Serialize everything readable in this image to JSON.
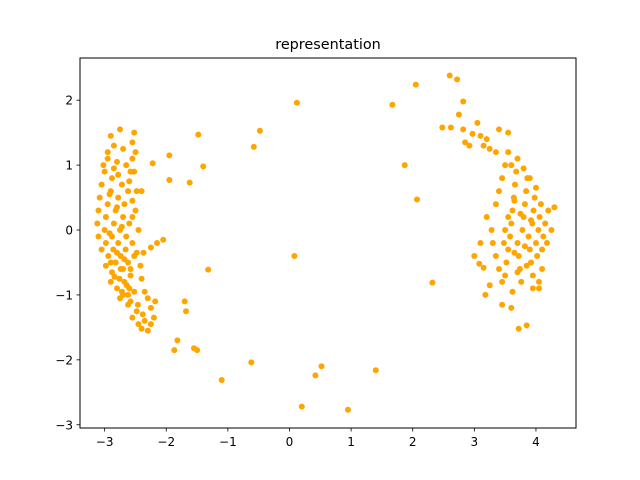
{
  "chart_data": {
    "type": "scatter",
    "title": "representation",
    "xlabel": "",
    "ylabel": "",
    "xlim": [
      -3.4,
      4.65
    ],
    "ylim": [
      -3.05,
      2.65
    ],
    "xticks": [
      -3,
      -2,
      -1,
      0,
      1,
      2,
      3,
      4
    ],
    "yticks": [
      -3,
      -2,
      -1,
      0,
      1,
      2
    ],
    "grid": false,
    "legend": "none",
    "marker_color": "#ffa500",
    "series": [
      {
        "points": [
          [
            -2.9,
            1.45
          ],
          [
            -2.75,
            1.55
          ],
          [
            -2.52,
            1.5
          ],
          [
            -2.85,
            1.3
          ],
          [
            -2.7,
            1.25
          ],
          [
            -2.55,
            1.35
          ],
          [
            -2.5,
            1.2
          ],
          [
            -2.95,
            1.1
          ],
          [
            -2.8,
            1.05
          ],
          [
            -2.65,
            1.0
          ],
          [
            -2.58,
            0.9
          ],
          [
            -3.0,
            0.9
          ],
          [
            -2.88,
            0.8
          ],
          [
            -2.72,
            0.7
          ],
          [
            -2.62,
            0.6
          ],
          [
            -3.05,
            0.7
          ],
          [
            -2.9,
            0.6
          ],
          [
            -2.78,
            0.5
          ],
          [
            -2.68,
            0.4
          ],
          [
            -3.08,
            0.5
          ],
          [
            -2.95,
            0.4
          ],
          [
            -2.82,
            0.3
          ],
          [
            -2.7,
            0.2
          ],
          [
            -2.6,
            0.1
          ],
          [
            -3.1,
            0.3
          ],
          [
            -2.98,
            0.2
          ],
          [
            -2.85,
            0.1
          ],
          [
            -2.75,
            0.0
          ],
          [
            -2.65,
            -0.1
          ],
          [
            -3.12,
            0.1
          ],
          [
            -3.0,
            0.0
          ],
          [
            -2.88,
            -0.1
          ],
          [
            -2.78,
            -0.2
          ],
          [
            -2.66,
            -0.3
          ],
          [
            -3.1,
            -0.1
          ],
          [
            -2.98,
            -0.2
          ],
          [
            -2.86,
            -0.3
          ],
          [
            -2.74,
            -0.4
          ],
          [
            -2.62,
            -0.5
          ],
          [
            -3.05,
            -0.3
          ],
          [
            -2.94,
            -0.4
          ],
          [
            -2.82,
            -0.5
          ],
          [
            -2.7,
            -0.6
          ],
          [
            -2.58,
            -0.7
          ],
          [
            -2.98,
            -0.55
          ],
          [
            -2.88,
            -0.65
          ],
          [
            -2.76,
            -0.75
          ],
          [
            -2.64,
            -0.85
          ],
          [
            -2.52,
            -0.95
          ],
          [
            -2.9,
            -0.8
          ],
          [
            -2.8,
            -0.9
          ],
          [
            -2.7,
            -1.0
          ],
          [
            -2.58,
            -1.1
          ],
          [
            -2.46,
            -1.15
          ],
          [
            -2.75,
            -1.05
          ],
          [
            -2.62,
            -1.15
          ],
          [
            -2.48,
            -1.25
          ],
          [
            -2.38,
            -1.3
          ],
          [
            -2.55,
            -1.35
          ],
          [
            -2.45,
            -1.45
          ],
          [
            -2.35,
            -1.4
          ],
          [
            -2.4,
            -1.52
          ],
          [
            -2.25,
            -1.45
          ],
          [
            -2.3,
            -1.55
          ],
          [
            -2.52,
            0.9
          ],
          [
            -2.48,
            0.6
          ],
          [
            -2.5,
            0.3
          ],
          [
            -2.45,
            0.0
          ],
          [
            -2.48,
            -0.35
          ],
          [
            -2.42,
            -0.55
          ],
          [
            -2.4,
            -0.75
          ],
          [
            -2.35,
            -0.95
          ],
          [
            -2.3,
            -1.05
          ],
          [
            -2.25,
            -1.2
          ],
          [
            -2.2,
            -1.35
          ],
          [
            -2.18,
            -1.1
          ],
          [
            -2.95,
            1.2
          ],
          [
            -3.02,
            1.0
          ],
          [
            -2.55,
            1.1
          ],
          [
            -2.6,
            0.75
          ],
          [
            -2.55,
            0.45
          ],
          [
            -2.55,
            0.2
          ],
          [
            -2.55,
            -0.2
          ],
          [
            -2.52,
            -0.4
          ],
          [
            -2.58,
            -0.6
          ],
          [
            -2.6,
            -0.9
          ],
          [
            -2.85,
            0.95
          ],
          [
            -2.78,
            0.85
          ],
          [
            -2.92,
            0.55
          ],
          [
            -2.8,
            0.35
          ],
          [
            -2.72,
            0.05
          ],
          [
            -2.92,
            -0.05
          ],
          [
            -2.8,
            -0.35
          ],
          [
            -2.68,
            -0.45
          ],
          [
            -2.9,
            -0.5
          ],
          [
            -2.74,
            -0.6
          ],
          [
            -2.84,
            -0.72
          ],
          [
            -2.68,
            -0.8
          ],
          [
            -2.72,
            -0.95
          ],
          [
            -2.62,
            -1.0
          ],
          [
            -2.4,
            0.6
          ],
          [
            -2.22,
            1.03
          ],
          [
            -2.37,
            -0.35
          ],
          [
            -2.25,
            -0.27
          ],
          [
            -2.15,
            -0.2
          ],
          [
            -2.05,
            -0.15
          ],
          [
            -1.95,
            1.15
          ],
          [
            -1.95,
            0.77
          ],
          [
            -1.82,
            -1.7
          ],
          [
            -1.87,
            -1.85
          ],
          [
            -1.7,
            -1.1
          ],
          [
            -1.68,
            -1.25
          ],
          [
            -1.5,
            -1.85
          ],
          [
            -1.55,
            -1.82
          ],
          [
            -1.62,
            0.73
          ],
          [
            -1.48,
            1.47
          ],
          [
            -1.4,
            0.98
          ],
          [
            -1.32,
            -0.61
          ],
          [
            -1.1,
            -2.31
          ],
          [
            -0.58,
            1.28
          ],
          [
            -0.48,
            1.53
          ],
          [
            -0.62,
            -2.04
          ],
          [
            0.08,
            -0.4
          ],
          [
            0.12,
            1.96
          ],
          [
            0.42,
            -2.24
          ],
          [
            0.52,
            -2.1
          ],
          [
            0.2,
            -2.72
          ],
          [
            0.95,
            -2.77
          ],
          [
            1.4,
            -2.16
          ],
          [
            1.67,
            1.93
          ],
          [
            1.87,
            1.0
          ],
          [
            2.05,
            2.24
          ],
          [
            2.07,
            0.47
          ],
          [
            2.32,
            -0.81
          ],
          [
            2.48,
            1.58
          ],
          [
            2.6,
            2.38
          ],
          [
            2.72,
            2.32
          ],
          [
            2.62,
            1.58
          ],
          [
            2.75,
            1.78
          ],
          [
            2.82,
            1.55
          ],
          [
            2.85,
            1.35
          ],
          [
            2.92,
            1.3
          ],
          [
            2.97,
            1.48
          ],
          [
            3.05,
            1.65
          ],
          [
            3.1,
            1.45
          ],
          [
            3.15,
            1.3
          ],
          [
            3.2,
            1.4
          ],
          [
            3.25,
            1.25
          ],
          [
            2.82,
            1.98
          ],
          [
            3.0,
            -0.4
          ],
          [
            3.08,
            -0.52
          ],
          [
            3.15,
            -0.58
          ],
          [
            3.25,
            -0.85
          ],
          [
            3.18,
            -1.0
          ],
          [
            3.1,
            -0.2
          ],
          [
            3.2,
            0.2
          ],
          [
            3.28,
            0.0
          ],
          [
            3.3,
            -0.2
          ],
          [
            3.35,
            -0.4
          ],
          [
            3.4,
            -0.6
          ],
          [
            3.45,
            -0.8
          ],
          [
            3.5,
            -0.7
          ],
          [
            3.52,
            -0.5
          ],
          [
            3.55,
            -0.3
          ],
          [
            3.58,
            -0.1
          ],
          [
            3.6,
            0.1
          ],
          [
            3.62,
            0.3
          ],
          [
            3.64,
            0.5
          ],
          [
            3.66,
            0.7
          ],
          [
            3.68,
            0.9
          ],
          [
            3.7,
            1.1
          ],
          [
            3.55,
            1.2
          ],
          [
            3.5,
            1.0
          ],
          [
            3.45,
            0.8
          ],
          [
            3.4,
            0.6
          ],
          [
            3.35,
            0.4
          ],
          [
            3.7,
            -0.2
          ],
          [
            3.72,
            -0.4
          ],
          [
            3.74,
            -0.6
          ],
          [
            3.76,
            -0.8
          ],
          [
            3.78,
            0.0
          ],
          [
            3.8,
            0.2
          ],
          [
            3.82,
            0.4
          ],
          [
            3.84,
            0.6
          ],
          [
            3.86,
            0.8
          ],
          [
            3.88,
            -0.1
          ],
          [
            3.9,
            -0.3
          ],
          [
            3.92,
            -0.5
          ],
          [
            3.94,
            0.1
          ],
          [
            3.96,
            0.3
          ],
          [
            3.98,
            0.5
          ],
          [
            4.0,
            -0.2
          ],
          [
            4.02,
            -0.4
          ],
          [
            4.04,
            0.0
          ],
          [
            4.06,
            0.2
          ],
          [
            4.08,
            0.4
          ],
          [
            4.1,
            -0.3
          ],
          [
            4.12,
            -0.1
          ],
          [
            4.15,
            0.1
          ],
          [
            4.2,
            0.3
          ],
          [
            4.25,
            0.0
          ],
          [
            4.18,
            -0.2
          ],
          [
            4.3,
            0.35
          ],
          [
            4.1,
            -0.6
          ],
          [
            4.05,
            -0.8
          ],
          [
            3.95,
            -0.9
          ],
          [
            4.05,
            -0.9
          ],
          [
            3.6,
            -1.2
          ],
          [
            3.72,
            -1.52
          ],
          [
            3.85,
            -1.47
          ],
          [
            3.45,
            -1.15
          ],
          [
            3.55,
            1.5
          ],
          [
            3.4,
            1.55
          ],
          [
            3.35,
            1.2
          ],
          [
            3.6,
            1.0
          ],
          [
            3.8,
            0.95
          ],
          [
            3.9,
            0.8
          ],
          [
            4.0,
            0.65
          ],
          [
            3.65,
            0.45
          ],
          [
            3.55,
            0.2
          ],
          [
            3.5,
            0.0
          ],
          [
            3.48,
            -0.2
          ],
          [
            3.65,
            -0.35
          ],
          [
            3.85,
            -0.55
          ],
          [
            3.95,
            -0.7
          ],
          [
            3.7,
            -0.65
          ],
          [
            3.62,
            -0.95
          ],
          [
            3.75,
            0.25
          ],
          [
            3.92,
            0.15
          ],
          [
            3.82,
            -0.25
          ]
        ]
      }
    ]
  }
}
